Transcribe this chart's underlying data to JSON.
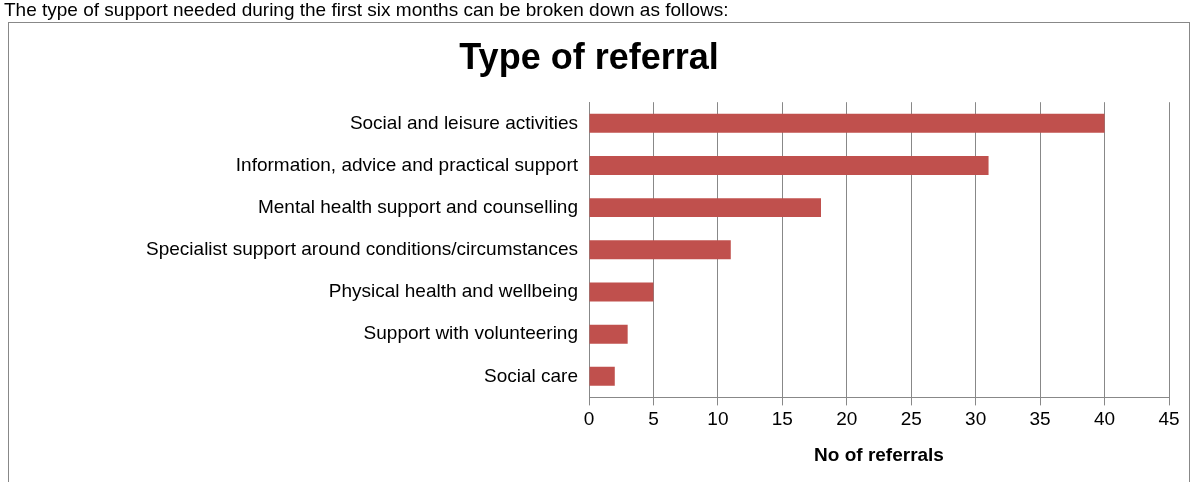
{
  "chart_data": {
    "type": "bar",
    "orientation": "horizontal",
    "title": "Type of referral",
    "xlabel": "No of referrals",
    "annotations": [
      "The type of support needed during the first six months can be broken down as follows:"
    ],
    "categories": [
      "Social and leisure activities",
      "Information, advice and practical support",
      "Mental health support and counselling",
      "Specialist support around conditions/circumstances",
      "Physical health and wellbeing",
      "Support with volunteering",
      "Social care"
    ],
    "values": [
      40,
      31,
      18,
      11,
      5,
      3,
      2
    ],
    "color": "#c0504d",
    "xlim": [
      0,
      45
    ],
    "xticks": [
      0,
      5,
      10,
      15,
      20,
      25,
      30,
      35,
      40,
      45
    ],
    "grid": "x",
    "legend": false
  }
}
